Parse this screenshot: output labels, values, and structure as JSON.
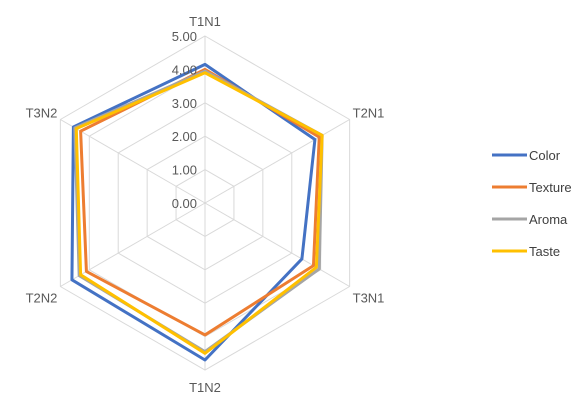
{
  "chart_data": {
    "type": "radar",
    "categories": [
      "T1N1",
      "T2N1",
      "T3N1",
      "T1N2",
      "T2N2",
      "T3N2"
    ],
    "rlim": [
      0,
      5
    ],
    "ticks": [
      "0.00",
      "1.00",
      "2.00",
      "3.00",
      "4.00",
      "5.00"
    ],
    "grid": true,
    "legend_position": "right",
    "series": [
      {
        "name": "Color",
        "color": "#4472C4",
        "values": [
          4.15,
          3.8,
          3.35,
          4.7,
          4.6,
          4.55
        ]
      },
      {
        "name": "Texture",
        "color": "#ED7D31",
        "values": [
          4.0,
          3.95,
          3.75,
          3.95,
          4.1,
          4.3
        ]
      },
      {
        "name": "Aroma",
        "color": "#A5A5A5",
        "values": [
          3.95,
          4.05,
          3.95,
          4.45,
          4.35,
          4.5
        ]
      },
      {
        "name": "Taste",
        "color": "#FFC000",
        "values": [
          3.9,
          4.05,
          3.85,
          4.5,
          4.3,
          4.45
        ]
      }
    ]
  }
}
